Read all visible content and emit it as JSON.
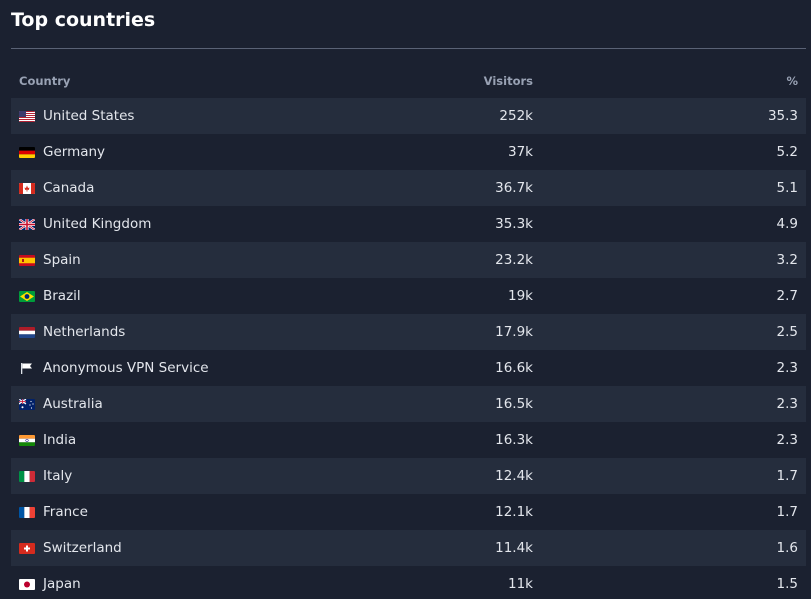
{
  "title": "Top countries",
  "table": {
    "headers": {
      "country": "Country",
      "visitors": "Visitors",
      "percent": "%"
    },
    "rows": [
      {
        "country": "United States",
        "flag": "us-flag-icon",
        "visitors": "252k",
        "percent": "35.3"
      },
      {
        "country": "Germany",
        "flag": "de-flag-icon",
        "visitors": "37k",
        "percent": "5.2"
      },
      {
        "country": "Canada",
        "flag": "ca-flag-icon",
        "visitors": "36.7k",
        "percent": "5.1"
      },
      {
        "country": "United Kingdom",
        "flag": "gb-flag-icon",
        "visitors": "35.3k",
        "percent": "4.9"
      },
      {
        "country": "Spain",
        "flag": "es-flag-icon",
        "visitors": "23.2k",
        "percent": "3.2"
      },
      {
        "country": "Brazil",
        "flag": "br-flag-icon",
        "visitors": "19k",
        "percent": "2.7"
      },
      {
        "country": "Netherlands",
        "flag": "nl-flag-icon",
        "visitors": "17.9k",
        "percent": "2.5"
      },
      {
        "country": "Anonymous VPN Service",
        "flag": "white-flag-icon",
        "visitors": "16.6k",
        "percent": "2.3"
      },
      {
        "country": "Australia",
        "flag": "au-flag-icon",
        "visitors": "16.5k",
        "percent": "2.3"
      },
      {
        "country": "India",
        "flag": "in-flag-icon",
        "visitors": "16.3k",
        "percent": "2.3"
      },
      {
        "country": "Italy",
        "flag": "it-flag-icon",
        "visitors": "12.4k",
        "percent": "1.7"
      },
      {
        "country": "France",
        "flag": "fr-flag-icon",
        "visitors": "12.1k",
        "percent": "1.7"
      },
      {
        "country": "Switzerland",
        "flag": "ch-flag-icon",
        "visitors": "11.4k",
        "percent": "1.6"
      },
      {
        "country": "Japan",
        "flag": "jp-flag-icon",
        "visitors": "11k",
        "percent": "1.5"
      }
    ]
  }
}
